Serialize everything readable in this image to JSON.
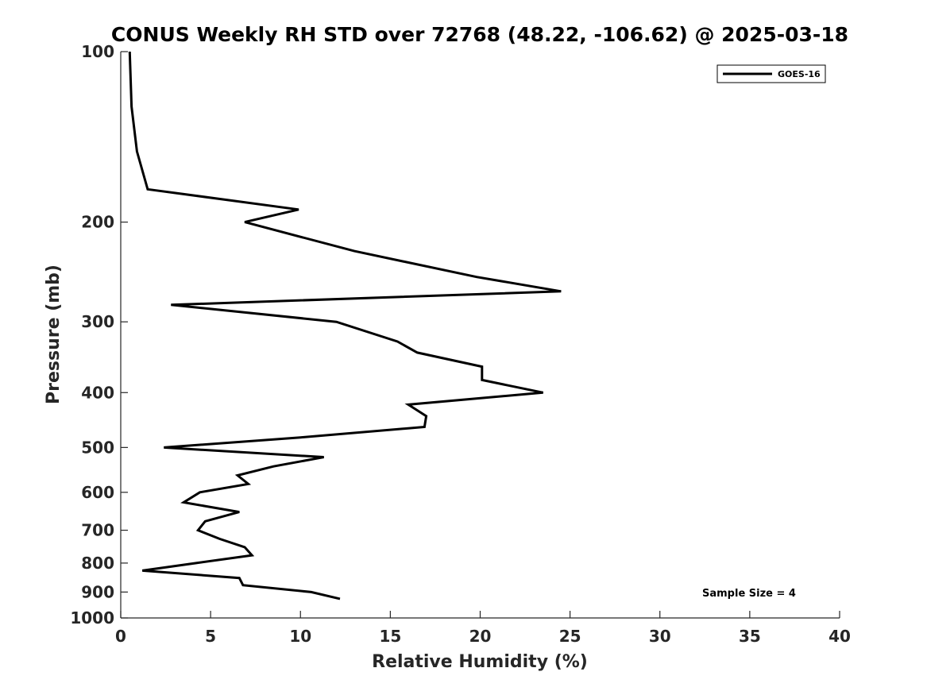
{
  "chart_data": {
    "type": "line",
    "title": "CONUS Weekly RH STD over 72768 (48.22, -106.62) @ 2025-03-18",
    "xlabel": "Relative Humidity (%)",
    "ylabel": "Pressure (mb)",
    "xlim": [
      0,
      40
    ],
    "ylim": [
      100,
      1000
    ],
    "y_scale": "log",
    "y_reversed": true,
    "grid": false,
    "x_ticks": [
      0,
      5,
      10,
      15,
      20,
      25,
      30,
      35,
      40
    ],
    "x_tick_labels": [
      "0",
      "5",
      "10",
      "15",
      "20",
      "25",
      "30",
      "35",
      "40"
    ],
    "y_ticks": [
      100,
      200,
      300,
      400,
      500,
      600,
      700,
      800,
      900,
      1000
    ],
    "y_tick_labels": [
      "100",
      "200",
      "300",
      "400",
      "500",
      "600",
      "700",
      "800",
      "900",
      "1000"
    ],
    "legend_position": "top-right",
    "annotation": "Sample Size = 4",
    "series": [
      {
        "name": "GOES-16",
        "color": "#000000",
        "points": [
          {
            "x": 0.5,
            "y": 100
          },
          {
            "x": 0.6,
            "y": 125
          },
          {
            "x": 0.9,
            "y": 150
          },
          {
            "x": 1.5,
            "y": 175
          },
          {
            "x": 9.9,
            "y": 190
          },
          {
            "x": 6.9,
            "y": 200
          },
          {
            "x": 13.0,
            "y": 225
          },
          {
            "x": 19.8,
            "y": 250
          },
          {
            "x": 24.5,
            "y": 265
          },
          {
            "x": 2.8,
            "y": 280
          },
          {
            "x": 12.0,
            "y": 300
          },
          {
            "x": 15.4,
            "y": 325
          },
          {
            "x": 16.5,
            "y": 340
          },
          {
            "x": 20.1,
            "y": 360
          },
          {
            "x": 20.1,
            "y": 380
          },
          {
            "x": 23.5,
            "y": 400
          },
          {
            "x": 16.0,
            "y": 420
          },
          {
            "x": 17.0,
            "y": 440
          },
          {
            "x": 16.9,
            "y": 460
          },
          {
            "x": 10.0,
            "y": 480
          },
          {
            "x": 2.4,
            "y": 500
          },
          {
            "x": 11.3,
            "y": 520
          },
          {
            "x": 8.5,
            "y": 540
          },
          {
            "x": 6.5,
            "y": 560
          },
          {
            "x": 7.1,
            "y": 580
          },
          {
            "x": 4.4,
            "y": 600
          },
          {
            "x": 3.5,
            "y": 625
          },
          {
            "x": 6.6,
            "y": 650
          },
          {
            "x": 4.7,
            "y": 675
          },
          {
            "x": 4.3,
            "y": 700
          },
          {
            "x": 5.5,
            "y": 725
          },
          {
            "x": 6.9,
            "y": 750
          },
          {
            "x": 7.3,
            "y": 775
          },
          {
            "x": 4.2,
            "y": 800
          },
          {
            "x": 1.2,
            "y": 825
          },
          {
            "x": 6.6,
            "y": 850
          },
          {
            "x": 6.8,
            "y": 875
          },
          {
            "x": 10.6,
            "y": 900
          },
          {
            "x": 12.2,
            "y": 925
          }
        ]
      }
    ]
  }
}
